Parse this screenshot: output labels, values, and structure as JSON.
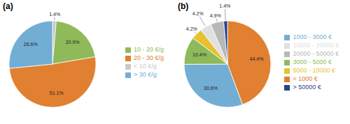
{
  "chart_data": [
    {
      "type": "pie",
      "title": "(a)",
      "categories": [
        "< 10 €/g",
        "10 - 20 €/g",
        "20 - 30 €/g",
        "> 30 €/g"
      ],
      "values": [
        1.4,
        20.9,
        51.1,
        26.6
      ],
      "value_labels": [
        "1.4%",
        "20.9%",
        "51.1%",
        "26.6%"
      ],
      "colors": [
        "#c8c8c8",
        "#8eba5a",
        "#e08030",
        "#72aed4"
      ],
      "data_labels": true,
      "legend": "right"
    },
    {
      "type": "pie",
      "title": "(b)",
      "categories": [
        "< 1000 €",
        "1000 - 3000 €",
        "3000 - 5000 €",
        "5000 - 10000 €",
        "10000 - 20000 €",
        "20000 - 50000 €",
        "> 50000 €"
      ],
      "values": [
        44.4,
        30.6,
        10.4,
        4.2,
        4.2,
        4.9,
        1.4
      ],
      "value_labels": [
        "44.4%",
        "30.6%",
        "10.4%",
        "4.2%",
        "4.2%",
        "4.9%",
        "1.4%"
      ],
      "colors": [
        "#e08030",
        "#72aed4",
        "#8eba5a",
        "#e8c030",
        "#e0e0e0",
        "#b8b8b8",
        "#2a4488"
      ],
      "data_labels": true,
      "legend": "right"
    }
  ]
}
